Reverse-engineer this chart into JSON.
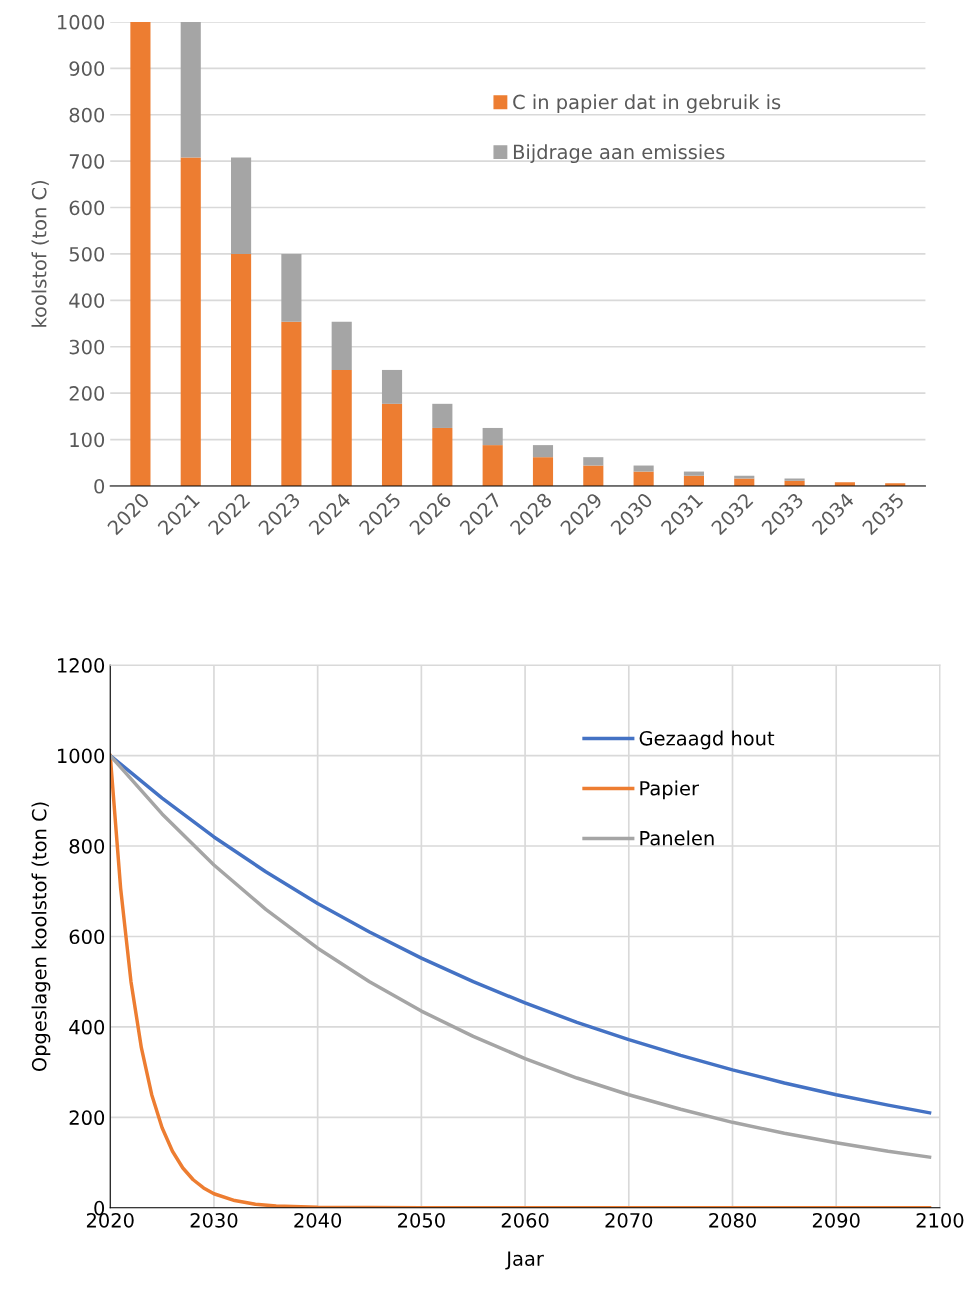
{
  "chart_data": [
    {
      "type": "bar",
      "stacked": true,
      "ylabel": "koolstof (ton C)",
      "categories": [
        "2020",
        "2021",
        "2022",
        "2023",
        "2024",
        "2025",
        "2026",
        "2027",
        "2028",
        "2029",
        "2030",
        "2031",
        "2032",
        "2033",
        "2034",
        "2035"
      ],
      "series": [
        {
          "name": "C in papier dat in gebruik is",
          "color": "#ed7d31",
          "values": [
            1000,
            708,
            500,
            354,
            250,
            177,
            125,
            88,
            62,
            44,
            31,
            22,
            16,
            11,
            8,
            6
          ]
        },
        {
          "name": "Bijdrage aan emissies",
          "color": "#a5a5a5",
          "values": [
            0,
            292,
            208,
            146,
            104,
            73,
            52,
            37,
            26,
            18,
            13,
            9,
            6,
            5,
            null,
            null
          ]
        }
      ],
      "ylim": [
        0,
        1000
      ],
      "yticks": [
        0,
        100,
        200,
        300,
        400,
        500,
        600,
        700,
        800,
        900,
        1000
      ],
      "grid": "y",
      "legend": "right"
    },
    {
      "type": "line",
      "xlabel": "Jaar",
      "ylabel": "Opgeslagen koolstof (ton C)",
      "series": [
        {
          "name": "Gezaagd hout",
          "color": "#4472c4",
          "x": [
            2020,
            2025,
            2030,
            2035,
            2040,
            2045,
            2050,
            2055,
            2060,
            2065,
            2070,
            2075,
            2080,
            2085,
            2090,
            2095,
            2099
          ],
          "values": [
            1000,
            906,
            820,
            743,
            673,
            610,
            552,
            500,
            453,
            410,
            372,
            337,
            305,
            276,
            250,
            227,
            210
          ]
        },
        {
          "name": "Papier",
          "color": "#ed7d31",
          "x": [
            2020,
            2021,
            2022,
            2023,
            2024,
            2025,
            2026,
            2027,
            2028,
            2029,
            2030,
            2032,
            2034,
            2036,
            2040,
            2050,
            2099
          ],
          "values": [
            1000,
            707,
            500,
            354,
            250,
            177,
            125,
            88,
            62,
            44,
            31,
            16,
            8,
            4,
            1,
            0,
            0
          ]
        },
        {
          "name": "Panelen",
          "color": "#a5a5a5",
          "x": [
            2020,
            2025,
            2030,
            2035,
            2040,
            2045,
            2050,
            2055,
            2060,
            2065,
            2070,
            2075,
            2080,
            2085,
            2090,
            2095,
            2099
          ],
          "values": [
            1000,
            871,
            758,
            660,
            574,
            500,
            435,
            379,
            330,
            287,
            250,
            218,
            189,
            165,
            144,
            125,
            112
          ]
        }
      ],
      "xlim": [
        2020,
        2100
      ],
      "xticks": [
        2020,
        2030,
        2040,
        2050,
        2060,
        2070,
        2080,
        2090,
        2100
      ],
      "ylim": [
        0,
        1200
      ],
      "yticks": [
        0,
        200,
        400,
        600,
        800,
        1000,
        1200
      ],
      "grid": true,
      "legend": "top right",
      "marker": "none",
      "line_style": "solid"
    }
  ]
}
